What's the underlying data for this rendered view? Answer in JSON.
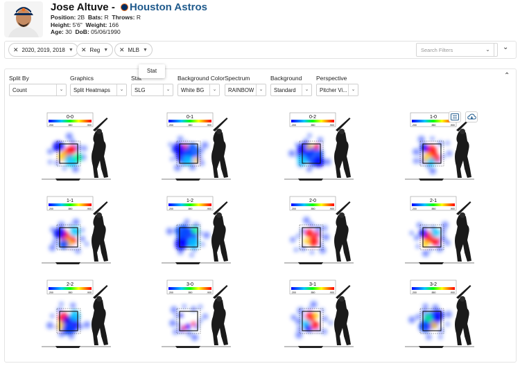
{
  "player": {
    "name": "Jose Altuve",
    "separator": "-",
    "team": "Houston Astros",
    "position_label": "Position:",
    "position": "2B",
    "bats_label": "Bats:",
    "bats": "R",
    "throws_label": "Throws:",
    "throws": "R",
    "height_label": "Height:",
    "height": "5'6\"",
    "weight_label": "Weight:",
    "weight": "166",
    "age_label": "Age:",
    "age": "30",
    "dob_label": "DoB:",
    "dob": "05/06/1990"
  },
  "filters": {
    "chips": [
      {
        "label": "2020, 2019, 2018"
      },
      {
        "label": "Reg"
      },
      {
        "label": "MLB"
      }
    ],
    "search_placeholder": "Search Filters"
  },
  "tooltip": {
    "text": "Stat"
  },
  "controls": {
    "split_by": {
      "label": "Split By",
      "value": "Count"
    },
    "graphics": {
      "label": "Graphics",
      "value": "Split Heatmaps"
    },
    "stat": {
      "label": "Stat",
      "value": "SLG"
    },
    "background_color": {
      "label": "Background Color",
      "value": "White BG"
    },
    "spectrum": {
      "label": "Spectrum",
      "value": "RAINBOW"
    },
    "background": {
      "label": "Background",
      "value": "Standard"
    },
    "perspective": {
      "label": "Perspective",
      "value": "Pitcher Vi..."
    }
  },
  "heatmaps": [
    {
      "count": "0-0",
      "scale": [
        ".200",
        ".550",
        ".900"
      ]
    },
    {
      "count": "0-1",
      "scale": [
        ".200",
        ".550",
        ".900"
      ]
    },
    {
      "count": "0-2",
      "scale": [
        ".200",
        ".550",
        ".900"
      ]
    },
    {
      "count": "1-0",
      "scale": [
        ".200",
        ".550",
        ".900"
      ]
    },
    {
      "count": "1-1",
      "scale": [
        ".200",
        ".550",
        ".900"
      ]
    },
    {
      "count": "1-2",
      "scale": [
        ".200",
        ".550",
        ".900"
      ]
    },
    {
      "count": "2-0",
      "scale": [
        ".200",
        ".550",
        ".900"
      ]
    },
    {
      "count": "2-1",
      "scale": [
        ".200",
        ".550",
        ".900"
      ]
    },
    {
      "count": "2-2",
      "scale": [
        ".200",
        ".550",
        ".900"
      ]
    },
    {
      "count": "3-0",
      "scale": [
        ".200",
        ".550",
        ".900"
      ]
    },
    {
      "count": "3-1",
      "scale": [
        ".200",
        ".550",
        ".900"
      ]
    },
    {
      "count": "3-2",
      "scale": [
        ".200",
        ".550",
        ".900"
      ]
    }
  ],
  "icons": {
    "list": "list-icon",
    "download": "cloud-download-icon"
  },
  "colors": {
    "team_link": "#1f5a8c",
    "accent": "#1f5a8c"
  }
}
